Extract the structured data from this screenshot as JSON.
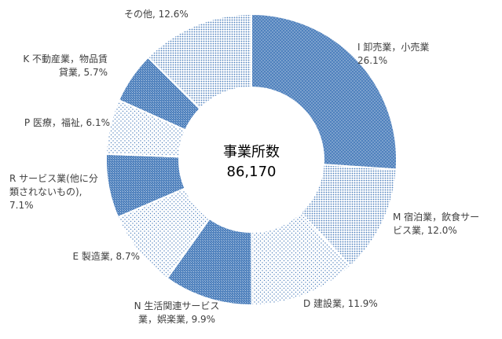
{
  "chart_data": {
    "type": "pie",
    "variant": "donut",
    "title": "",
    "center_label": "事業所数",
    "center_value": "86,170",
    "slices": [
      {
        "label_lines": [
          "I 卸売業，小売業",
          "26.1%"
        ],
        "value": 26.1,
        "color": "#4f81bd",
        "pattern": "dots-light"
      },
      {
        "label_lines": [
          "M 宿泊業，飲食サー",
          "ビス業, 12.0%"
        ],
        "value": 12.0,
        "color": "#95b3d7",
        "pattern": "dots-dense"
      },
      {
        "label_lines": [
          "D 建設業, 11.9%"
        ],
        "value": 11.9,
        "color": "#b8cce4",
        "pattern": "dots-sparse"
      },
      {
        "label_lines": [
          "N 生活関連サービス",
          "業，娯楽業, 9.9%"
        ],
        "value": 9.9,
        "color": "#4f81bd",
        "pattern": "grid"
      },
      {
        "label_lines": [
          "E 製造業, 8.7%"
        ],
        "value": 8.7,
        "color": "#dce6f1",
        "pattern": "dots-sparse"
      },
      {
        "label_lines": [
          "R サービス業(他に分",
          "類されないもの),",
          "7.1%"
        ],
        "value": 7.1,
        "color": "#4f81bd",
        "pattern": "grid"
      },
      {
        "label_lines": [
          "P 医療，福祉, 6.1%"
        ],
        "value": 6.1,
        "color": "#dce6f1",
        "pattern": "dots-sparse"
      },
      {
        "label_lines": [
          "K 不動産業，物品賃",
          "貸業, 5.7%"
        ],
        "value": 5.7,
        "color": "#4f81bd",
        "pattern": "grid"
      },
      {
        "label_lines": [
          "その他, 12.6%"
        ],
        "value": 12.6,
        "color": "#b8cce4",
        "pattern": "dots-dense"
      }
    ]
  }
}
